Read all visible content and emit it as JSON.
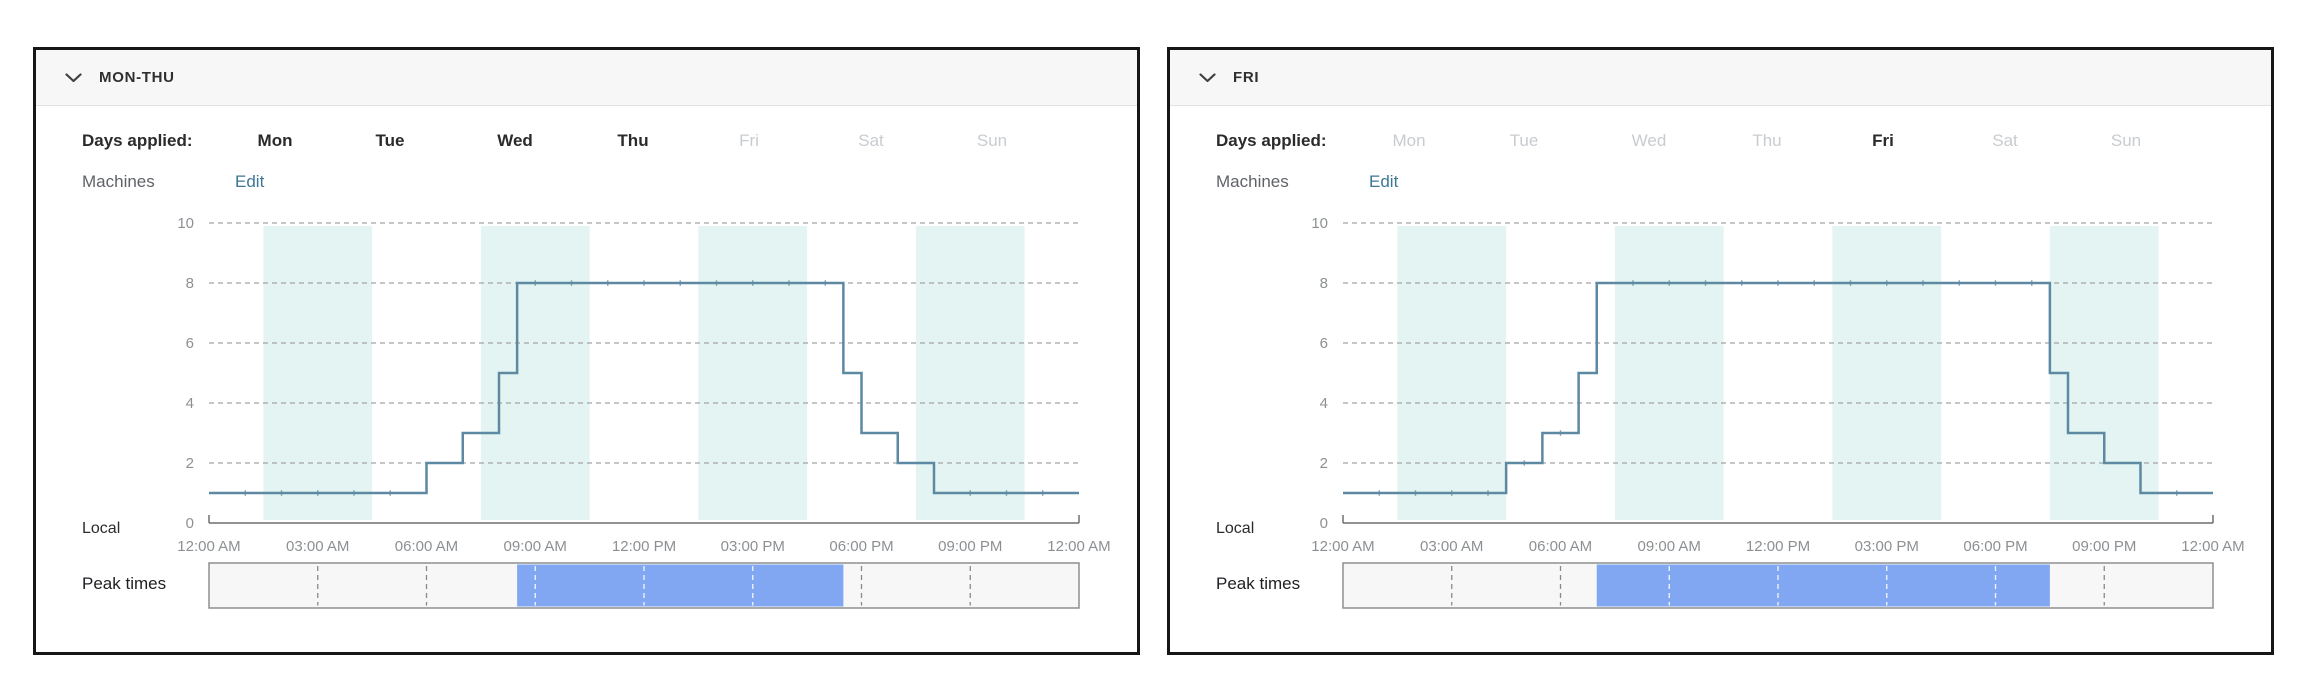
{
  "colors": {
    "accent_link": "#3e7693",
    "step_line": "#5d89a2",
    "highlight_band": "#e3f4f2",
    "peak_fill": "#82a7f2",
    "peak_bar_bg": "#f7f7f7",
    "peak_bar_border": "#8f8f8f",
    "grid_dash": "#a3a3a3",
    "axis": "#6e6e6e",
    "tick_text": "#8d9093",
    "text_dark": "#2b2b2b",
    "text_gray": "#5f6368",
    "day_inactive": "#c8ccd0"
  },
  "panels": [
    {
      "title": "MON-THU",
      "days_applied_label": "Days applied:",
      "days": [
        {
          "label": "Mon",
          "active": true
        },
        {
          "label": "Tue",
          "active": true
        },
        {
          "label": "Wed",
          "active": true
        },
        {
          "label": "Thu",
          "active": true
        },
        {
          "label": "Fri",
          "active": false
        },
        {
          "label": "Sat",
          "active": false
        },
        {
          "label": "Sun",
          "active": false
        }
      ],
      "machines_label": "Machines",
      "edit_label": "Edit",
      "local_label": "Local",
      "peak_times_label": "Peak times"
    },
    {
      "title": "FRI",
      "days_applied_label": "Days applied:",
      "days": [
        {
          "label": "Mon",
          "active": false
        },
        {
          "label": "Tue",
          "active": false
        },
        {
          "label": "Wed",
          "active": false
        },
        {
          "label": "Thu",
          "active": false
        },
        {
          "label": "Fri",
          "active": true
        },
        {
          "label": "Sat",
          "active": false
        },
        {
          "label": "Sun",
          "active": false
        }
      ],
      "machines_label": "Machines",
      "edit_label": "Edit",
      "local_label": "Local",
      "peak_times_label": "Peak times"
    }
  ],
  "chart_data": [
    {
      "type": "line",
      "subtype": "step",
      "panel": "MON-THU",
      "series_name": "Machines",
      "ylabel": "Machines",
      "ylim": [
        0,
        10
      ],
      "y_ticks": [
        0,
        2,
        4,
        6,
        8,
        10
      ],
      "x_range_hours": [
        0,
        24
      ],
      "x_tick_interval_hours": 3,
      "x_tick_labels": [
        "12:00 AM",
        "03:00 AM",
        "06:00 AM",
        "09:00 AM",
        "12:00 PM",
        "03:00 PM",
        "06:00 PM",
        "09:00 PM",
        "12:00 AM"
      ],
      "grid": "dashed-horizontal",
      "legend": "none",
      "steps": [
        {
          "from": "12:00 AM",
          "to": "06:00 AM",
          "from_hour": 0,
          "to_hour": 6,
          "machines": 1
        },
        {
          "from": "06:00 AM",
          "to": "07:00 AM",
          "from_hour": 6,
          "to_hour": 7,
          "machines": 2
        },
        {
          "from": "07:00 AM",
          "to": "08:00 AM",
          "from_hour": 7,
          "to_hour": 8,
          "machines": 3
        },
        {
          "from": "08:00 AM",
          "to": "08:30 AM",
          "from_hour": 8,
          "to_hour": 8.5,
          "machines": 5
        },
        {
          "from": "08:30 AM",
          "to": "05:30 PM",
          "from_hour": 8.5,
          "to_hour": 17.5,
          "machines": 8
        },
        {
          "from": "05:30 PM",
          "to": "06:00 PM",
          "from_hour": 17.5,
          "to_hour": 18,
          "machines": 5
        },
        {
          "from": "06:00 PM",
          "to": "07:00 PM",
          "from_hour": 18,
          "to_hour": 19,
          "machines": 3
        },
        {
          "from": "07:00 PM",
          "to": "08:00 PM",
          "from_hour": 19,
          "to_hour": 20,
          "machines": 2
        },
        {
          "from": "08:00 PM",
          "to": "12:00 AM",
          "from_hour": 20,
          "to_hour": 24,
          "machines": 1
        }
      ],
      "highlight_bands_hours": [
        [
          1.5,
          4.5
        ],
        [
          7.5,
          10.5
        ],
        [
          13.5,
          16.5
        ],
        [
          19.5,
          22.5
        ]
      ],
      "peak_times": {
        "from": "08:30 AM",
        "to": "05:30 PM",
        "from_hour": 8.5,
        "to_hour": 17.5
      }
    },
    {
      "type": "line",
      "subtype": "step",
      "panel": "FRI",
      "series_name": "Machines",
      "ylabel": "Machines",
      "ylim": [
        0,
        10
      ],
      "y_ticks": [
        0,
        2,
        4,
        6,
        8,
        10
      ],
      "x_range_hours": [
        0,
        24
      ],
      "x_tick_interval_hours": 3,
      "x_tick_labels": [
        "12:00 AM",
        "03:00 AM",
        "06:00 AM",
        "09:00 AM",
        "12:00 PM",
        "03:00 PM",
        "06:00 PM",
        "09:00 PM",
        "12:00 AM"
      ],
      "grid": "dashed-horizontal",
      "legend": "none",
      "steps": [
        {
          "from": "12:00 AM",
          "to": "04:30 AM",
          "from_hour": 0,
          "to_hour": 4.5,
          "machines": 1
        },
        {
          "from": "04:30 AM",
          "to": "05:30 AM",
          "from_hour": 4.5,
          "to_hour": 5.5,
          "machines": 2
        },
        {
          "from": "05:30 AM",
          "to": "06:30 AM",
          "from_hour": 5.5,
          "to_hour": 6.5,
          "machines": 3
        },
        {
          "from": "06:30 AM",
          "to": "07:00 AM",
          "from_hour": 6.5,
          "to_hour": 7,
          "machines": 5
        },
        {
          "from": "07:00 AM",
          "to": "07:30 PM",
          "from_hour": 7,
          "to_hour": 19.5,
          "machines": 8
        },
        {
          "from": "07:30 PM",
          "to": "08:00 PM",
          "from_hour": 19.5,
          "to_hour": 20,
          "machines": 5
        },
        {
          "from": "08:00 PM",
          "to": "09:00 PM",
          "from_hour": 20,
          "to_hour": 21,
          "machines": 3
        },
        {
          "from": "09:00 PM",
          "to": "10:00 PM",
          "from_hour": 21,
          "to_hour": 22,
          "machines": 2
        },
        {
          "from": "10:00 PM",
          "to": "12:00 AM",
          "from_hour": 22,
          "to_hour": 24,
          "machines": 1
        }
      ],
      "highlight_bands_hours": [
        [
          1.5,
          4.5
        ],
        [
          7.5,
          10.5
        ],
        [
          13.5,
          16.5
        ],
        [
          19.5,
          22.5
        ]
      ],
      "peak_times": {
        "from": "07:00 AM",
        "to": "07:30 PM",
        "from_hour": 7,
        "to_hour": 19.5
      }
    }
  ]
}
